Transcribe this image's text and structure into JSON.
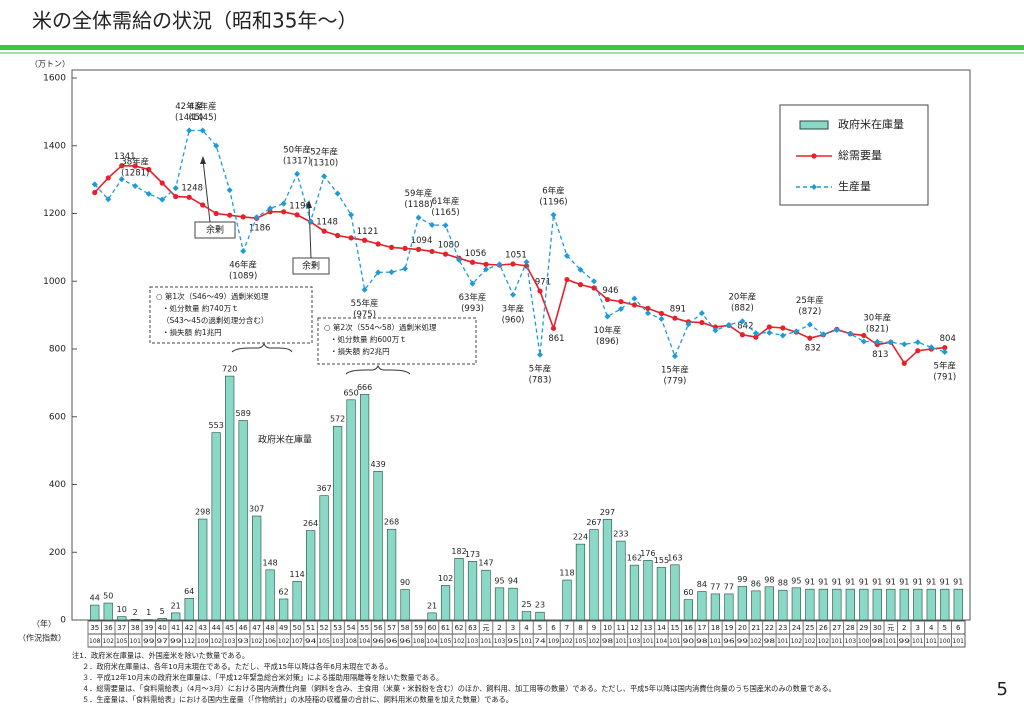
{
  "page_title": "米の全体需給の状況（昭和35年～）",
  "page_number": "5",
  "chart_data": {
    "type": "combo",
    "y_unit": "（万トン）",
    "x_row_label": "（年）",
    "index_row_label": "（作況指数）",
    "categories": [
      "35",
      "36",
      "37",
      "38",
      "39",
      "40",
      "41",
      "42",
      "43",
      "44",
      "45",
      "46",
      "47",
      "48",
      "49",
      "50",
      "51",
      "52",
      "53",
      "54",
      "55",
      "56",
      "57",
      "58",
      "59",
      "60",
      "61",
      "62",
      "63",
      "元",
      "2",
      "3",
      "4",
      "5",
      "6",
      "7",
      "8",
      "9",
      "10",
      "11",
      "12",
      "13",
      "14",
      "15",
      "16",
      "17",
      "18",
      "19",
      "20",
      "21",
      "22",
      "23",
      "24",
      "25",
      "26",
      "27",
      "28",
      "29",
      "30",
      "元",
      "2",
      "3",
      "4",
      "5",
      "6"
    ],
    "crop_index": [
      108,
      102,
      105,
      101,
      99,
      97,
      99,
      112,
      109,
      102,
      103,
      93,
      102,
      106,
      102,
      107,
      94,
      105,
      103,
      108,
      104,
      96,
      96,
      96,
      108,
      104,
      105,
      102,
      103,
      101,
      103,
      95,
      101,
      74,
      109,
      102,
      105,
      102,
      98,
      101,
      103,
      101,
      104,
      101,
      90,
      98,
      101,
      96,
      99,
      102,
      98,
      101,
      102,
      102,
      102,
      101,
      103,
      100,
      98,
      101,
      99,
      101,
      101,
      100,
      101
    ],
    "ylim": [
      0,
      1600
    ],
    "yticks": [
      0,
      200,
      400,
      600,
      800,
      1000,
      1200,
      1400,
      1600
    ],
    "grid": false,
    "legend_position": "upper right",
    "series": [
      {
        "name": "政府米在庫量",
        "type": "bar",
        "color": "#8ad8c6",
        "values": [
          44,
          50,
          10,
          2,
          1,
          5,
          21,
          64,
          298,
          553,
          720,
          589,
          307,
          148,
          62,
          114,
          264,
          367,
          572,
          650,
          666,
          439,
          268,
          90,
          null,
          21,
          102,
          182,
          173,
          147,
          95,
          94,
          25,
          23,
          null,
          118,
          224,
          267,
          297,
          233,
          162,
          176,
          155,
          163,
          60,
          84,
          77,
          77,
          99,
          86,
          98,
          88,
          95,
          91,
          91,
          91,
          91,
          91,
          91,
          91,
          91,
          91,
          91,
          91,
          91
        ]
      },
      {
        "name": "総需要量",
        "type": "line",
        "color": "#e8202a",
        "marker": "circle",
        "values": [
          1262,
          1305,
          1341,
          1340,
          1330,
          1290,
          1250,
          1248,
          1225,
          1200,
          1195,
          1190,
          1186,
          1205,
          1205,
          1196,
          1175,
          1148,
          1135,
          1128,
          1121,
          1110,
          1100,
          1097,
          1094,
          1088,
          1080,
          1068,
          1056,
          1050,
          1048,
          1051,
          1045,
          971,
          861,
          1005,
          990,
          980,
          946,
          940,
          930,
          920,
          905,
          891,
          880,
          878,
          865,
          870,
          842,
          835,
          865,
          862,
          850,
          832,
          842,
          858,
          845,
          840,
          813,
          820,
          758,
          795,
          800,
          804,
          null
        ],
        "value_labels": [
          null,
          null,
          "1341",
          null,
          null,
          null,
          null,
          "1248",
          null,
          null,
          null,
          null,
          "1186",
          null,
          null,
          "1196",
          null,
          "1148",
          null,
          null,
          "1121",
          null,
          null,
          null,
          "1094",
          null,
          "1080",
          null,
          "1056",
          null,
          null,
          "1051",
          null,
          "971",
          "861",
          null,
          null,
          null,
          "946",
          null,
          null,
          null,
          null,
          "891",
          null,
          null,
          null,
          null,
          "842",
          null,
          null,
          null,
          null,
          "832",
          null,
          null,
          null,
          null,
          "813",
          null,
          null,
          null,
          null,
          "804",
          null
        ]
      },
      {
        "name": "生産量",
        "type": "line",
        "color": "#1e9ad6",
        "marker": "diamond",
        "dashed": true,
        "values": [
          1286,
          1242,
          1301,
          1281,
          1258,
          1241,
          1275,
          1445,
          1445,
          1400,
          1269,
          1089,
          1189,
          1215,
          1229,
          1317,
          1177,
          1310,
          1259,
          1196,
          975,
          1026,
          1027,
          1037,
          1188,
          1166,
          1165,
          1063,
          993,
          1035,
          1050,
          960,
          1057,
          783,
          1196,
          1075,
          1034,
          1000,
          896,
          918,
          949,
          906,
          889,
          779,
          873,
          906,
          855,
          871,
          882,
          847,
          848,
          840,
          852,
          872,
          843,
          856,
          845,
          822,
          821,
          820,
          814,
          820,
          805,
          791,
          null
        ],
        "year_labels": [
          null,
          null,
          null,
          "38年産",
          null,
          null,
          null,
          "42年産",
          "43年産",
          null,
          null,
          "46年産",
          null,
          null,
          null,
          "50年産",
          null,
          "52年産",
          null,
          null,
          "55年産",
          null,
          null,
          null,
          "59年産",
          null,
          "61年産",
          null,
          "63年産",
          null,
          null,
          "3年産",
          null,
          "5年産",
          "6年産",
          null,
          null,
          null,
          "10年産",
          null,
          null,
          null,
          null,
          "15年産",
          null,
          null,
          null,
          null,
          "20年産",
          null,
          null,
          null,
          null,
          "25年産",
          null,
          null,
          null,
          null,
          "30年産",
          null,
          null,
          null,
          null,
          "5年産",
          null
        ],
        "value_labels": [
          null,
          null,
          null,
          "(1281)",
          null,
          null,
          null,
          "(1445)",
          "(1445)",
          null,
          null,
          "(1089)",
          null,
          null,
          null,
          "(1317)",
          null,
          "(1310)",
          null,
          null,
          "(975)",
          null,
          null,
          null,
          "(1188)",
          null,
          "(1165)",
          null,
          "(993)",
          null,
          null,
          "(960)",
          null,
          "(783)",
          "(1196)",
          null,
          null,
          null,
          "(896)",
          null,
          null,
          null,
          null,
          "(779)",
          null,
          null,
          null,
          null,
          "(882)",
          null,
          null,
          null,
          null,
          "(872)",
          null,
          null,
          null,
          null,
          "(821)",
          null,
          null,
          null,
          null,
          "(791)",
          null
        ]
      }
    ],
    "annotations": {
      "bar_caption": "政府米在庫量",
      "surplus_1": "余剰",
      "surplus_2": "余剰",
      "disposal_1": [
        "○ 第1次（S46～49）過剰米処理",
        "・処分数量 約740万ｔ",
        "（S43～45の過剰処理分含む）",
        "・損失額 約1兆円"
      ],
      "disposal_2": [
        "○ 第2次（S54～58）過剰米処理",
        "・処分数量 約600万ｔ",
        "・損失額 約2兆円"
      ]
    }
  },
  "notes": [
    "注1．政府米在庫量は、外国産米を除いた数量である。",
    "２．政府米在庫量は、各年10月末現在である。ただし、平成15年以降は各年6月末現在である。",
    "３．平成12年10月末の政府米在庫量は、「平成12年緊急総合米対策」による援助用隔離等を除いた数量である。",
    "４．総需要量は、「食料需給表」（4月～3月）における国内消費仕向量（飼料を含み、主食用（米菓・米穀粉を含む）のほか、飼料用、加工用等の数量）である。ただし、平成5年以降は国内消費仕向量のうち国産米のみの数量である。",
    "５．生産量は、「食料需給表」における国内生産量（「作物統計」の水陸稲の収穫量の合計に、飼料用米の数量を加えた数量）である。"
  ]
}
